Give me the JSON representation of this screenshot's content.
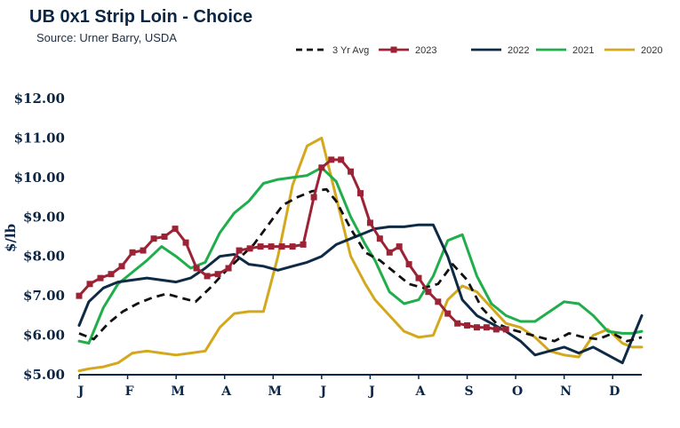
{
  "header": {
    "title": "UB 0x1 Strip Loin - Choice",
    "subtitle": "Source: Urner Barry, USDA"
  },
  "colors": {
    "avg": "#111111",
    "y2023": "#9b2335",
    "y2022": "#0f2a44",
    "y2021": "#1fae4b",
    "y2020": "#d4a81c",
    "axis": "#0b2545"
  },
  "chart_data": {
    "type": "line",
    "ylabel": "$/lb",
    "xlabel": "",
    "ylim": [
      5.0,
      12.0
    ],
    "yticks": [
      "$5.00",
      "$6.00",
      "$7.00",
      "$8.00",
      "$9.00",
      "$10.00",
      "$11.00",
      "$12.00"
    ],
    "ytick_values": [
      5,
      6,
      7,
      8,
      9,
      10,
      11,
      12
    ],
    "categories": [
      "J",
      "F",
      "M",
      "A",
      "M",
      "J",
      "J",
      "A",
      "S",
      "O",
      "N",
      "D"
    ],
    "x_range": [
      0,
      11.6
    ],
    "legend_position": "top-right",
    "series": [
      {
        "name": "3 Yr Avg",
        "key": "avg",
        "dash": true,
        "markers": false,
        "x": [
          0,
          0.3,
          0.6,
          0.9,
          1.2,
          1.5,
          1.8,
          2.1,
          2.4,
          2.7,
          3.0,
          3.3,
          3.6,
          3.9,
          4.2,
          4.5,
          4.8,
          5.1,
          5.3,
          5.6,
          5.9,
          6.2,
          6.5,
          6.8,
          7.1,
          7.4,
          7.7,
          8.0,
          8.3,
          8.6,
          8.9,
          9.2,
          9.5,
          9.8,
          10.1,
          10.4,
          10.7,
          11.0,
          11.3,
          11.6
        ],
        "y": [
          6.05,
          5.9,
          6.3,
          6.6,
          6.8,
          6.95,
          7.05,
          6.95,
          6.85,
          7.2,
          7.6,
          7.95,
          8.3,
          8.8,
          9.3,
          9.5,
          9.65,
          9.7,
          9.4,
          8.7,
          8.1,
          7.9,
          7.6,
          7.3,
          7.2,
          7.3,
          7.8,
          7.4,
          6.7,
          6.3,
          6.15,
          6.05,
          5.95,
          5.85,
          6.05,
          5.95,
          5.9,
          6.05,
          5.85,
          5.95
        ]
      },
      {
        "name": "2023",
        "key": "y2023",
        "dash": false,
        "markers": true,
        "x": [
          0,
          0.22,
          0.44,
          0.66,
          0.88,
          1.1,
          1.32,
          1.54,
          1.76,
          1.98,
          2.2,
          2.42,
          2.64,
          2.86,
          3.08,
          3.3,
          3.52,
          3.74,
          3.96,
          4.18,
          4.4,
          4.62,
          4.84,
          5.0,
          5.2,
          5.4,
          5.6,
          5.8,
          6.0,
          6.2,
          6.4,
          6.6,
          6.8,
          7.0,
          7.2,
          7.4,
          7.6,
          7.8,
          8.0,
          8.2,
          8.4,
          8.6,
          8.8
        ],
        "y": [
          7.0,
          7.3,
          7.45,
          7.55,
          7.75,
          8.1,
          8.15,
          8.45,
          8.5,
          8.7,
          8.35,
          7.7,
          7.5,
          7.55,
          7.7,
          8.15,
          8.2,
          8.25,
          8.25,
          8.25,
          8.25,
          8.3,
          9.5,
          10.25,
          10.45,
          10.45,
          10.15,
          9.6,
          8.85,
          8.45,
          8.1,
          8.25,
          7.8,
          7.45,
          7.1,
          6.85,
          6.55,
          6.3,
          6.25,
          6.2,
          6.2,
          6.15,
          6.15
        ]
      },
      {
        "name": "2022",
        "key": "y2022",
        "dash": false,
        "markers": false,
        "x": [
          0,
          0.2,
          0.5,
          0.8,
          1.1,
          1.4,
          1.7,
          2.0,
          2.3,
          2.6,
          2.9,
          3.2,
          3.5,
          3.8,
          4.1,
          4.4,
          4.7,
          5.0,
          5.3,
          5.6,
          5.9,
          6.1,
          6.4,
          6.7,
          7.0,
          7.3,
          7.6,
          7.9,
          8.2,
          8.5,
          8.8,
          9.1,
          9.4,
          9.7,
          10.0,
          10.3,
          10.6,
          10.9,
          11.2,
          11.4,
          11.6
        ],
        "y": [
          6.25,
          6.85,
          7.2,
          7.35,
          7.4,
          7.45,
          7.4,
          7.35,
          7.45,
          7.7,
          8.0,
          8.05,
          7.8,
          7.75,
          7.65,
          7.75,
          7.85,
          8.0,
          8.3,
          8.45,
          8.6,
          8.7,
          8.75,
          8.75,
          8.8,
          8.8,
          8.0,
          6.9,
          6.5,
          6.3,
          6.1,
          5.85,
          5.5,
          5.6,
          5.7,
          5.55,
          5.7,
          5.5,
          5.3,
          5.9,
          6.5
        ]
      },
      {
        "name": "2021",
        "key": "y2021",
        "dash": false,
        "markers": false,
        "x": [
          0,
          0.2,
          0.5,
          0.8,
          1.1,
          1.4,
          1.7,
          2.0,
          2.3,
          2.6,
          2.9,
          3.2,
          3.5,
          3.8,
          4.1,
          4.4,
          4.7,
          5.0,
          5.3,
          5.6,
          5.9,
          6.1,
          6.4,
          6.7,
          7.0,
          7.3,
          7.6,
          7.9,
          8.2,
          8.5,
          8.8,
          9.1,
          9.4,
          9.7,
          10.0,
          10.3,
          10.6,
          10.9,
          11.2,
          11.4,
          11.6
        ],
        "y": [
          5.85,
          5.8,
          6.7,
          7.3,
          7.6,
          7.9,
          8.25,
          8.0,
          7.7,
          7.85,
          8.6,
          9.1,
          9.4,
          9.85,
          9.95,
          10.0,
          10.05,
          10.25,
          9.9,
          9.0,
          8.3,
          7.9,
          7.1,
          6.8,
          6.9,
          7.5,
          8.4,
          8.55,
          7.5,
          6.8,
          6.5,
          6.35,
          6.35,
          6.6,
          6.85,
          6.8,
          6.5,
          6.1,
          6.05,
          6.05,
          6.1
        ]
      },
      {
        "name": "2020",
        "key": "y2020",
        "dash": false,
        "markers": false,
        "x": [
          0,
          0.2,
          0.5,
          0.8,
          1.1,
          1.4,
          1.7,
          2.0,
          2.3,
          2.6,
          2.9,
          3.2,
          3.5,
          3.8,
          4.1,
          4.4,
          4.7,
          5.0,
          5.3,
          5.6,
          5.9,
          6.1,
          6.4,
          6.7,
          7.0,
          7.3,
          7.6,
          7.9,
          8.2,
          8.5,
          8.8,
          9.1,
          9.4,
          9.7,
          10.0,
          10.3,
          10.6,
          10.9,
          11.2,
          11.4,
          11.6
        ],
        "y": [
          5.1,
          5.15,
          5.2,
          5.3,
          5.55,
          5.6,
          5.55,
          5.5,
          5.55,
          5.6,
          6.2,
          6.55,
          6.6,
          6.6,
          8.0,
          9.8,
          10.8,
          11.0,
          9.5,
          8.0,
          7.3,
          6.9,
          6.5,
          6.1,
          5.95,
          6.0,
          6.9,
          7.25,
          7.1,
          6.7,
          6.3,
          6.2,
          5.95,
          5.6,
          5.5,
          5.45,
          6.0,
          6.15,
          5.8,
          5.7,
          5.7
        ]
      }
    ]
  }
}
